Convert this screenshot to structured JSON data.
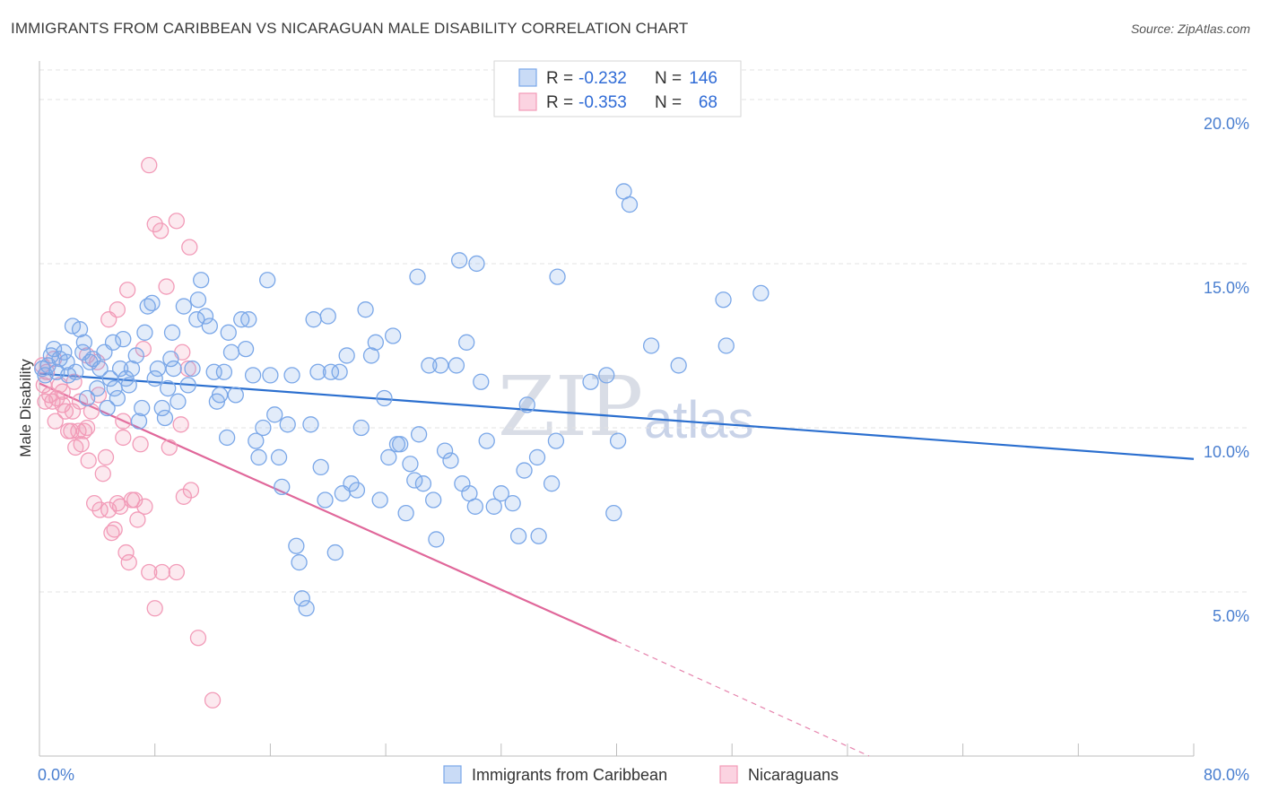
{
  "header": {
    "title": "IMMIGRANTS FROM CARIBBEAN VS NICARAGUAN MALE DISABILITY CORRELATION CHART",
    "source": "Source: ZipAtlas.com"
  },
  "watermark": {
    "zip": "ZIP",
    "atlas": "atlas"
  },
  "legend": {
    "rows": [
      {
        "r_label": "R =",
        "r_value": "-0.232",
        "n_label": "N =",
        "n_value": "146",
        "color": "#7aa7e8"
      },
      {
        "r_label": "R =",
        "r_value": "-0.353",
        "n_label": "N =",
        "n_value": "68",
        "color": "#f29bb8"
      }
    ]
  },
  "bottom_legend": {
    "items": [
      {
        "label": "Immigrants from Caribbean",
        "color": "#7aa7e8"
      },
      {
        "label": "Nicaraguans",
        "color": "#f29bb8"
      }
    ]
  },
  "chart_data": {
    "type": "scatter",
    "title": "IMMIGRANTS FROM CARIBBEAN VS NICARAGUAN MALE DISABILITY CORRELATION CHART",
    "xlabel": "",
    "ylabel": "Male Disability",
    "xlim": [
      0,
      80
    ],
    "ylim": [
      0,
      20.9
    ],
    "x_tick_labels": [
      {
        "value": 0,
        "label": "0.0%"
      },
      {
        "value": 80,
        "label": "80.0%"
      }
    ],
    "y_tick_labels": [
      {
        "value": 5,
        "label": "5.0%"
      },
      {
        "value": 10,
        "label": "10.0%"
      },
      {
        "value": 15,
        "label": "15.0%"
      },
      {
        "value": 20,
        "label": "20.0%"
      }
    ],
    "grid": true,
    "legend_position": "top-center",
    "series": [
      {
        "name": "Immigrants from Caribbean",
        "color": "#7aa7e8",
        "trend_color": "#2b6fcf",
        "trend": {
          "x0": 0,
          "y0": 11.65,
          "x1": 80,
          "y1": 9.05
        },
        "points": [
          [
            0.2,
            11.8
          ],
          [
            0.4,
            11.6
          ],
          [
            0.6,
            11.9
          ],
          [
            0.8,
            12.2
          ],
          [
            1.0,
            12.4
          ],
          [
            1.2,
            11.7
          ],
          [
            1.4,
            12.1
          ],
          [
            1.7,
            12.3
          ],
          [
            1.9,
            12.0
          ],
          [
            2.0,
            11.6
          ],
          [
            2.3,
            13.1
          ],
          [
            2.5,
            11.7
          ],
          [
            2.8,
            13.0
          ],
          [
            3.0,
            12.3
          ],
          [
            3.1,
            12.6
          ],
          [
            3.3,
            10.9
          ],
          [
            3.5,
            12.0
          ],
          [
            3.7,
            12.1
          ],
          [
            4.0,
            11.2
          ],
          [
            4.2,
            11.8
          ],
          [
            4.5,
            12.3
          ],
          [
            4.7,
            10.6
          ],
          [
            4.9,
            11.5
          ],
          [
            5.1,
            12.6
          ],
          [
            5.2,
            11.2
          ],
          [
            5.4,
            10.9
          ],
          [
            5.6,
            11.8
          ],
          [
            5.8,
            12.7
          ],
          [
            6.0,
            11.5
          ],
          [
            6.2,
            11.3
          ],
          [
            6.4,
            11.8
          ],
          [
            6.7,
            12.2
          ],
          [
            6.9,
            10.2
          ],
          [
            7.1,
            10.6
          ],
          [
            7.3,
            12.9
          ],
          [
            7.5,
            13.7
          ],
          [
            7.8,
            13.8
          ],
          [
            8.0,
            11.5
          ],
          [
            8.2,
            11.8
          ],
          [
            8.5,
            10.6
          ],
          [
            8.7,
            10.3
          ],
          [
            8.9,
            11.2
          ],
          [
            9.1,
            12.1
          ],
          [
            9.3,
            11.8
          ],
          [
            9.6,
            10.8
          ],
          [
            10.0,
            13.7
          ],
          [
            10.3,
            11.3
          ],
          [
            10.6,
            11.8
          ],
          [
            10.9,
            13.3
          ],
          [
            11.2,
            14.5
          ],
          [
            11.5,
            13.4
          ],
          [
            11.8,
            13.1
          ],
          [
            12.1,
            11.7
          ],
          [
            12.3,
            10.8
          ],
          [
            12.5,
            11.0
          ],
          [
            12.8,
            11.7
          ],
          [
            13.0,
            9.7
          ],
          [
            13.3,
            12.3
          ],
          [
            13.6,
            11.0
          ],
          [
            14.0,
            13.3
          ],
          [
            14.3,
            12.4
          ],
          [
            14.5,
            13.3
          ],
          [
            14.8,
            11.6
          ],
          [
            15.0,
            9.6
          ],
          [
            15.2,
            9.1
          ],
          [
            15.5,
            10.0
          ],
          [
            15.8,
            14.5
          ],
          [
            16.0,
            11.6
          ],
          [
            16.3,
            10.4
          ],
          [
            16.6,
            9.1
          ],
          [
            16.8,
            8.2
          ],
          [
            17.2,
            10.1
          ],
          [
            17.5,
            11.6
          ],
          [
            17.8,
            6.4
          ],
          [
            18.0,
            5.9
          ],
          [
            18.2,
            4.8
          ],
          [
            18.5,
            4.5
          ],
          [
            18.8,
            10.1
          ],
          [
            19.0,
            13.3
          ],
          [
            19.3,
            11.7
          ],
          [
            19.5,
            8.8
          ],
          [
            19.8,
            7.8
          ],
          [
            20.0,
            13.4
          ],
          [
            20.2,
            11.7
          ],
          [
            20.5,
            6.2
          ],
          [
            20.8,
            11.7
          ],
          [
            21.0,
            8.0
          ],
          [
            21.3,
            12.2
          ],
          [
            21.6,
            8.3
          ],
          [
            22.0,
            8.1
          ],
          [
            22.3,
            10.0
          ],
          [
            22.6,
            13.6
          ],
          [
            23.0,
            12.2
          ],
          [
            23.3,
            12.6
          ],
          [
            23.6,
            7.8
          ],
          [
            23.9,
            10.9
          ],
          [
            24.2,
            9.1
          ],
          [
            24.5,
            12.8
          ],
          [
            24.8,
            9.5
          ],
          [
            25.0,
            9.5
          ],
          [
            25.4,
            7.4
          ],
          [
            25.7,
            8.9
          ],
          [
            26.0,
            8.4
          ],
          [
            26.3,
            9.8
          ],
          [
            26.6,
            8.3
          ],
          [
            27.0,
            11.9
          ],
          [
            27.3,
            7.8
          ],
          [
            27.5,
            6.6
          ],
          [
            27.8,
            11.9
          ],
          [
            28.1,
            9.3
          ],
          [
            28.5,
            9.0
          ],
          [
            28.9,
            11.9
          ],
          [
            29.3,
            8.3
          ],
          [
            29.6,
            12.6
          ],
          [
            29.8,
            8.0
          ],
          [
            30.2,
            7.6
          ],
          [
            30.6,
            11.4
          ],
          [
            31.0,
            9.6
          ],
          [
            31.5,
            7.6
          ],
          [
            32.0,
            8.0
          ],
          [
            32.8,
            7.7
          ],
          [
            33.2,
            6.7
          ],
          [
            33.6,
            8.7
          ],
          [
            33.8,
            10.7
          ],
          [
            34.5,
            9.1
          ],
          [
            34.6,
            6.7
          ],
          [
            35.5,
            8.3
          ],
          [
            35.8,
            9.6
          ],
          [
            35.9,
            14.6
          ],
          [
            38.2,
            11.4
          ],
          [
            39.3,
            11.6
          ],
          [
            39.8,
            7.4
          ],
          [
            40.1,
            9.6
          ],
          [
            42.4,
            12.5
          ],
          [
            44.3,
            11.9
          ],
          [
            47.4,
            13.9
          ],
          [
            47.6,
            12.5
          ],
          [
            50.0,
            14.1
          ],
          [
            40.5,
            17.2
          ],
          [
            40.9,
            16.8
          ],
          [
            30.3,
            15.0
          ],
          [
            29.1,
            15.1
          ],
          [
            26.2,
            14.6
          ],
          [
            11.0,
            13.9
          ],
          [
            13.1,
            12.9
          ],
          [
            9.2,
            12.9
          ]
        ]
      },
      {
        "name": "Nicaraguans",
        "color": "#f29bb8",
        "trend_color": "#e0679a",
        "trend": {
          "x0": 0,
          "y0": 11.35,
          "x1": 40,
          "y1": 3.5
        },
        "trend_dashed": {
          "x0": 40,
          "y0": 3.5,
          "x1": 57.5,
          "y1": 0.0
        },
        "points": [
          [
            0.2,
            11.9
          ],
          [
            0.3,
            11.3
          ],
          [
            0.4,
            10.8
          ],
          [
            0.5,
            11.7
          ],
          [
            0.7,
            11.0
          ],
          [
            0.9,
            10.8
          ],
          [
            1.1,
            10.2
          ],
          [
            1.2,
            10.9
          ],
          [
            1.4,
            11.3
          ],
          [
            1.6,
            10.7
          ],
          [
            1.8,
            10.5
          ],
          [
            2.0,
            9.9
          ],
          [
            2.2,
            9.9
          ],
          [
            2.3,
            10.5
          ],
          [
            2.5,
            9.4
          ],
          [
            2.7,
            9.9
          ],
          [
            2.9,
            9.5
          ],
          [
            3.1,
            9.9
          ],
          [
            3.3,
            10.0
          ],
          [
            3.4,
            9.0
          ],
          [
            3.6,
            10.5
          ],
          [
            3.8,
            7.7
          ],
          [
            4.0,
            12.0
          ],
          [
            4.2,
            7.5
          ],
          [
            4.4,
            8.6
          ],
          [
            4.6,
            9.1
          ],
          [
            4.8,
            7.5
          ],
          [
            5.0,
            6.8
          ],
          [
            5.2,
            6.9
          ],
          [
            5.4,
            7.7
          ],
          [
            5.6,
            7.6
          ],
          [
            5.8,
            9.7
          ],
          [
            6.0,
            6.2
          ],
          [
            6.2,
            5.9
          ],
          [
            6.4,
            7.8
          ],
          [
            6.6,
            7.8
          ],
          [
            6.8,
            7.2
          ],
          [
            7.0,
            9.5
          ],
          [
            7.3,
            7.6
          ],
          [
            7.6,
            5.6
          ],
          [
            8.0,
            4.5
          ],
          [
            8.5,
            5.6
          ],
          [
            9.0,
            9.4
          ],
          [
            9.5,
            5.6
          ],
          [
            10.0,
            7.9
          ],
          [
            10.5,
            8.1
          ],
          [
            11.0,
            3.6
          ],
          [
            12.0,
            1.7
          ],
          [
            7.6,
            18.0
          ],
          [
            8.0,
            16.2
          ],
          [
            8.4,
            16.0
          ],
          [
            9.5,
            16.3
          ],
          [
            10.4,
            15.5
          ],
          [
            8.8,
            14.3
          ],
          [
            6.1,
            14.2
          ],
          [
            5.4,
            13.6
          ],
          [
            4.8,
            13.3
          ],
          [
            7.2,
            12.4
          ],
          [
            9.9,
            12.3
          ],
          [
            10.3,
            11.8
          ],
          [
            2.8,
            10.8
          ],
          [
            1.6,
            11.1
          ],
          [
            2.4,
            11.4
          ],
          [
            3.3,
            12.2
          ],
          [
            4.1,
            11.0
          ],
          [
            1.0,
            12.1
          ],
          [
            5.8,
            10.2
          ],
          [
            9.8,
            10.1
          ]
        ]
      }
    ]
  }
}
